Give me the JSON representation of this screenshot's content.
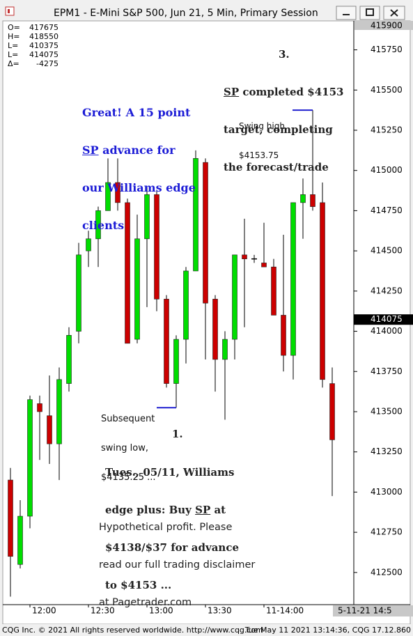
{
  "window_title": "EPM1 - E-Mini S&P 500, Jun 21, 5 Min, Primary Session",
  "chart_data": {
    "type": "candlestick",
    "categories": [
      null,
      null,
      "12:00",
      null,
      null,
      null,
      null,
      null,
      "12:30",
      null,
      null,
      null,
      null,
      null,
      "13:00",
      null,
      null,
      null,
      null,
      null,
      "13:30",
      null,
      null,
      null,
      null,
      null,
      "11-14:00",
      null,
      null,
      null,
      null,
      null,
      null,
      null
    ],
    "open": [
      413075,
      412550,
      412850,
      413550,
      413475,
      413300,
      413675,
      414000,
      414500,
      414575,
      414750,
      414925,
      414800,
      413950,
      414575,
      414850,
      414200,
      413675,
      413950,
      414375,
      415050,
      414200,
      413825,
      413950,
      414475,
      414450,
      414425,
      414400,
      414100,
      413850,
      414800,
      414850,
      414800,
      413675
    ],
    "high": [
      413150,
      412950,
      413600,
      413600,
      413725,
      413775,
      414025,
      414550,
      414625,
      414775,
      415075,
      415075,
      414825,
      414725,
      414900,
      414875,
      414225,
      413975,
      414400,
      415125,
      415075,
      414225,
      414000,
      414475,
      414700,
      414475,
      414675,
      414450,
      414600,
      414800,
      414950,
      415375,
      414925,
      413775
    ],
    "low": [
      412350,
      412525,
      412775,
      413200,
      413175,
      413075,
      413625,
      413925,
      414400,
      414400,
      414750,
      414750,
      413925,
      413925,
      414150,
      414125,
      413650,
      413525,
      413800,
      414375,
      413825,
      413625,
      413450,
      413825,
      414025,
      414425,
      414400,
      414100,
      413750,
      413700,
      414575,
      414750,
      413650,
      412975
    ],
    "close": [
      412600,
      412850,
      413575,
      413500,
      413300,
      413700,
      413975,
      414475,
      414575,
      414750,
      414925,
      414800,
      413925,
      414575,
      414850,
      414200,
      413675,
      413950,
      414375,
      415075,
      414175,
      413825,
      413950,
      414475,
      414450,
      414450,
      414400,
      414100,
      413850,
      414800,
      414850,
      414775,
      413700,
      413325
    ],
    "ylim": [
      412300,
      415930
    ],
    "yticks": [
      412500,
      412750,
      413000,
      413250,
      413500,
      413750,
      414000,
      414250,
      414500,
      414750,
      415000,
      415250,
      415500,
      415750
    ],
    "grid": false,
    "up_color": "#00dd00",
    "down_color": "#cc0000",
    "flat_color": "#000000",
    "last_price": 414075,
    "scale_top": 415900,
    "cursor_label": "5-11-21 14:5",
    "quote_box": [
      {
        "label": "O=",
        "value": 417675
      },
      {
        "label": "H=",
        "value": 418550
      },
      {
        "label": "L=",
        "value": 410375
      },
      {
        "label": "L=",
        "value": 414075
      },
      {
        "label": "Δ=",
        "value": -4275
      }
    ],
    "annotations": {
      "target": {
        "number": "3.",
        "lines": [
          [
            "SP",
            " completed $4153"
          ],
          [
            "target, completing"
          ],
          [
            "the forecast/trade"
          ]
        ]
      },
      "great": {
        "lines": [
          [
            "Great! A 15 point"
          ],
          [
            "SP",
            " advance for"
          ],
          [
            "our Williams edge"
          ],
          [
            "clients"
          ]
        ]
      },
      "swing_high": {
        "lines": [
          "Swing high,",
          "$4153.75"
        ]
      },
      "swing_low": {
        "lines": [
          "Subsequent",
          "swing low,",
          "$4135.25 ..."
        ]
      },
      "trade": {
        "number": "1.",
        "lines": [
          [
            "Tues., 05/11, Williams"
          ],
          [
            "edge plus: Buy ",
            "SP",
            " at"
          ],
          [
            "$4138/$37 for advance"
          ],
          [
            "to $4153 ..."
          ]
        ]
      },
      "disclaimer": {
        "lines": [
          "Hypothetical profit. Please",
          "read our full trading disclaimer",
          "at Pagetrader.com"
        ]
      }
    }
  },
  "footer": {
    "left": "CQG Inc. © 2021 All rights reserved worldwide. http://www.cqg.com",
    "right": "Tue May 11 2021 13:14:36, CQG 17.12.860"
  }
}
